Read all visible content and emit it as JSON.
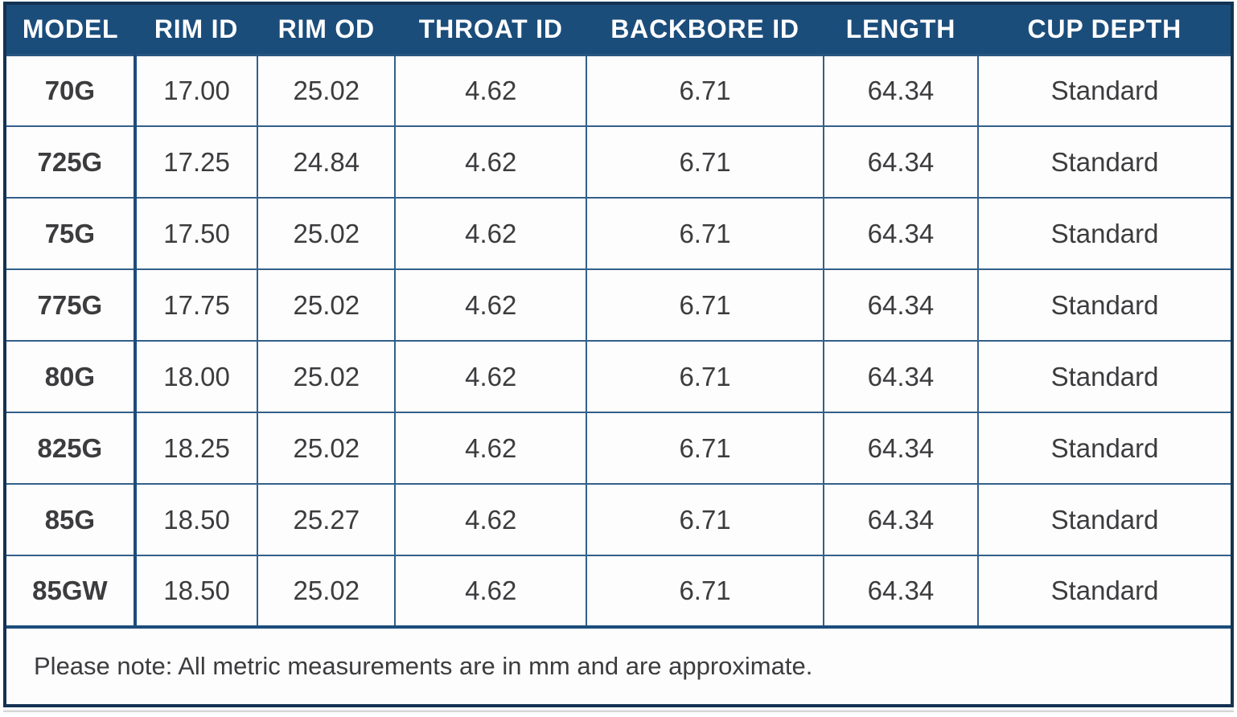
{
  "table": {
    "columns": [
      "MODEL",
      "RIM ID",
      "RIM OD",
      "THROAT ID",
      "BACKBORE ID",
      "LENGTH",
      "CUP DEPTH"
    ],
    "rows": [
      [
        "70G",
        "17.00",
        "25.02",
        "4.62",
        "6.71",
        "64.34",
        "Standard"
      ],
      [
        "725G",
        "17.25",
        "24.84",
        "4.62",
        "6.71",
        "64.34",
        "Standard"
      ],
      [
        "75G",
        "17.50",
        "25.02",
        "4.62",
        "6.71",
        "64.34",
        "Standard"
      ],
      [
        "775G",
        "17.75",
        "25.02",
        "4.62",
        "6.71",
        "64.34",
        "Standard"
      ],
      [
        "80G",
        "18.00",
        "25.02",
        "4.62",
        "6.71",
        "64.34",
        "Standard"
      ],
      [
        "825G",
        "18.25",
        "25.02",
        "4.62",
        "6.71",
        "64.34",
        "Standard"
      ],
      [
        "85G",
        "18.50",
        "25.27",
        "4.62",
        "6.71",
        "64.34",
        "Standard"
      ],
      [
        "85GW",
        "18.50",
        "25.02",
        "4.62",
        "6.71",
        "64.34",
        "Standard"
      ]
    ],
    "note": "Please note: All metric measurements are in mm and are approximate."
  },
  "colors": {
    "header_background": "#1b4d7b",
    "outer_border": "#143253",
    "grid_border": "#336089",
    "thick_divider": "#1b4d7b",
    "header_text": "#ffffff",
    "body_text": "#3c3c3e"
  }
}
